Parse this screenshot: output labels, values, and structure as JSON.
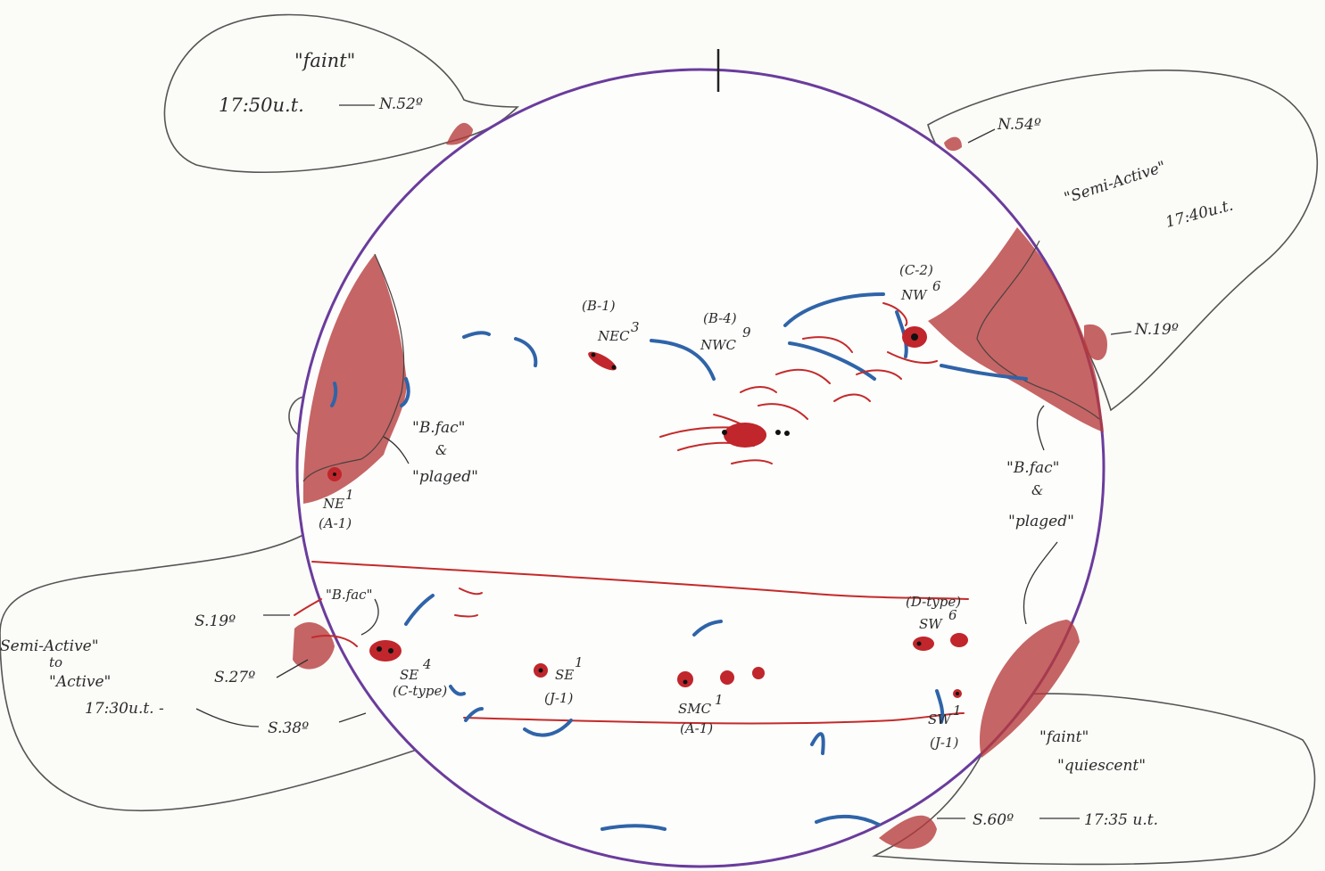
{
  "colors": {
    "disk_outline": "#6a3c9c",
    "faculae": "#b63a3a",
    "filament": "#2f64a8",
    "bubble": "#555555"
  },
  "prominences": {
    "ne_north": {
      "status": "\"faint\"",
      "time": "17:50u.t.",
      "latitude": "N.52º"
    },
    "nw_north": {
      "latitude": "N.54º",
      "status": "\"Semi-Active\"",
      "time": "17:40u.t."
    },
    "nw_mid": {
      "latitude": "N.19º"
    },
    "se": {
      "status_line1": "Semi-Active\"",
      "status_line2": "to",
      "status_line3": "\"Active\"",
      "time": "17:30u.t. -",
      "lat_1": "S.19º",
      "lat_2": "S.27º",
      "lat_3": "S.38º"
    },
    "sw": {
      "status_1": "\"faint\"",
      "status_2": "\"quiescent\"",
      "latitude": "S.60º",
      "time": "17:35 u.t."
    }
  },
  "regions": {
    "b1": {
      "class": "(B-1)",
      "name": "NEC",
      "count": "3"
    },
    "b4": {
      "class": "(B-4)",
      "name": "NWC",
      "count": "9"
    },
    "c2": {
      "class": "(C-2)",
      "name": "NW",
      "count": "6"
    },
    "ne1": {
      "name": "NE",
      "count": "1",
      "class": "(A-1)"
    },
    "se4": {
      "name": "SE",
      "count": "4",
      "class": "(C-type)"
    },
    "se1": {
      "name": "SE",
      "count": "1",
      "class": "(J-1)"
    },
    "smc1": {
      "name": "SMC",
      "count": "1",
      "class": "(A-1)"
    },
    "sw6": {
      "class": "(D-type)",
      "name": "SW",
      "count": "6"
    },
    "sw1": {
      "name": "SW",
      "count": "1",
      "class": "(J-1)"
    }
  },
  "notes": {
    "east_limb": {
      "line1": "\"B.fac\"",
      "line2": "&",
      "line3": "\"plaged\""
    },
    "west_limb": {
      "line1": "\"B.fac\"",
      "line2": "&",
      "line3": "\"plaged\""
    },
    "se_fac": "\"B.fac\""
  }
}
